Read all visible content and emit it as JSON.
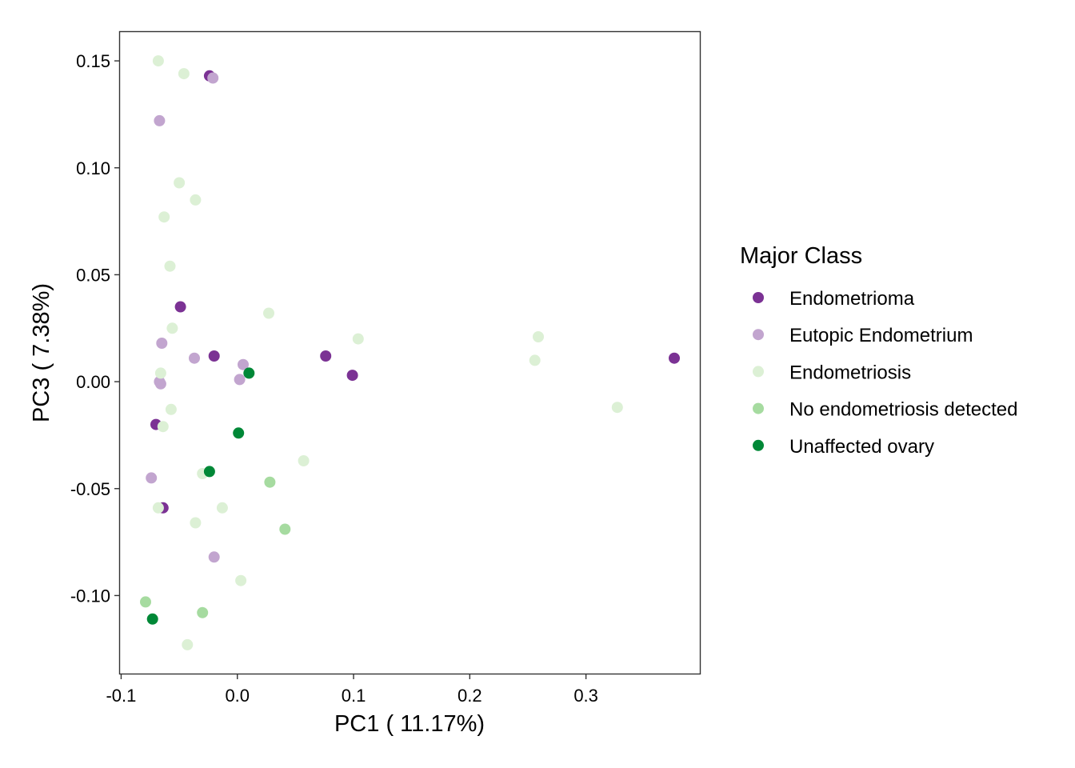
{
  "chart_data": {
    "type": "scatter",
    "xlabel": "PC1 ( 11.17%)",
    "ylabel": "PC3 ( 7.38%)",
    "xlim": [
      -0.101,
      0.398
    ],
    "ylim": [
      -0.1365,
      0.1635
    ],
    "x_ticks": [
      -0.1,
      0.0,
      0.1,
      0.2,
      0.3
    ],
    "x_tick_labels": [
      "-0.1",
      "0.0",
      "0.1",
      "0.2",
      "0.3"
    ],
    "y_ticks": [
      0.15,
      0.1,
      0.05,
      0.0,
      -0.05,
      -0.1
    ],
    "y_tick_labels": [
      "0.15",
      "0.10",
      "0.05",
      "0.00",
      "-0.05",
      "-0.10"
    ],
    "grid": false,
    "legend": {
      "title": "Major Class",
      "placement": "right"
    },
    "series": [
      {
        "name": "Endometrioma",
        "color": "#7b3294",
        "points": [
          {
            "x": -0.024,
            "y": 0.143
          },
          {
            "x": -0.049,
            "y": 0.035
          },
          {
            "x": -0.02,
            "y": 0.012
          },
          {
            "x": 0.076,
            "y": 0.012
          },
          {
            "x": 0.099,
            "y": 0.003
          },
          {
            "x": 0.376,
            "y": 0.011
          },
          {
            "x": -0.07,
            "y": -0.02
          },
          {
            "x": -0.064,
            "y": -0.059
          }
        ]
      },
      {
        "name": "Eutopic Endometrium",
        "color": "#c2a5cf",
        "points": [
          {
            "x": -0.021,
            "y": 0.142
          },
          {
            "x": -0.067,
            "y": 0.122
          },
          {
            "x": -0.065,
            "y": 0.018
          },
          {
            "x": -0.037,
            "y": 0.011
          },
          {
            "x": 0.005,
            "y": 0.008
          },
          {
            "x": -0.067,
            "y": 0.0
          },
          {
            "x": -0.066,
            "y": -0.001
          },
          {
            "x": 0.002,
            "y": 0.001
          },
          {
            "x": -0.074,
            "y": -0.045
          },
          {
            "x": -0.02,
            "y": -0.082
          }
        ]
      },
      {
        "name": "Endometriosis",
        "color": "#dcf0d5",
        "points": [
          {
            "x": -0.068,
            "y": 0.15
          },
          {
            "x": -0.046,
            "y": 0.144
          },
          {
            "x": -0.05,
            "y": 0.093
          },
          {
            "x": -0.036,
            "y": 0.085
          },
          {
            "x": -0.063,
            "y": 0.077
          },
          {
            "x": -0.058,
            "y": 0.054
          },
          {
            "x": 0.027,
            "y": 0.032
          },
          {
            "x": -0.056,
            "y": 0.025
          },
          {
            "x": 0.104,
            "y": 0.02
          },
          {
            "x": 0.259,
            "y": 0.021
          },
          {
            "x": 0.256,
            "y": 0.01
          },
          {
            "x": -0.066,
            "y": 0.004
          },
          {
            "x": -0.057,
            "y": -0.013
          },
          {
            "x": -0.064,
            "y": -0.021
          },
          {
            "x": 0.327,
            "y": -0.012
          },
          {
            "x": 0.057,
            "y": -0.037
          },
          {
            "x": -0.03,
            "y": -0.043
          },
          {
            "x": -0.068,
            "y": -0.059
          },
          {
            "x": -0.013,
            "y": -0.059
          },
          {
            "x": -0.036,
            "y": -0.066
          },
          {
            "x": 0.003,
            "y": -0.093
          },
          {
            "x": -0.043,
            "y": -0.123
          }
        ]
      },
      {
        "name": "No endometriosis detected",
        "color": "#a6dba0",
        "points": [
          {
            "x": 0.028,
            "y": -0.047
          },
          {
            "x": 0.041,
            "y": -0.069
          },
          {
            "x": -0.079,
            "y": -0.103
          },
          {
            "x": -0.03,
            "y": -0.108
          }
        ]
      },
      {
        "name": "Unaffected ovary",
        "color": "#008837",
        "points": [
          {
            "x": 0.01,
            "y": 0.004
          },
          {
            "x": 0.001,
            "y": -0.024
          },
          {
            "x": -0.024,
            "y": -0.042
          },
          {
            "x": -0.073,
            "y": -0.111
          }
        ]
      }
    ]
  }
}
